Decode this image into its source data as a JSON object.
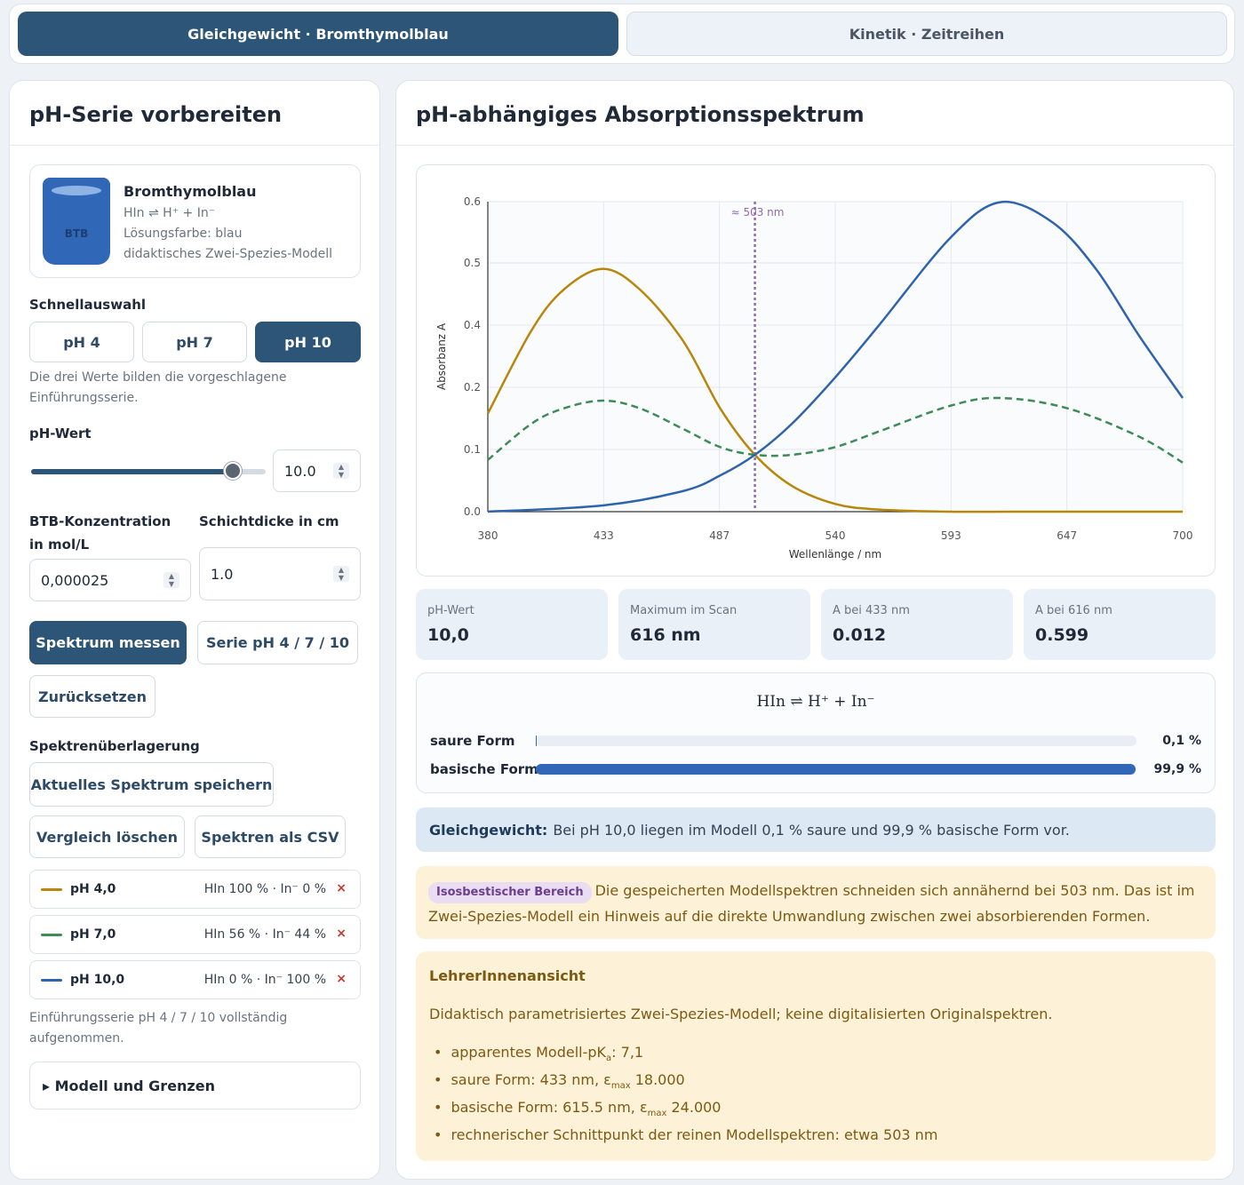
{
  "tabs": [
    {
      "label": "Gleichgewicht · Bromthymolblau",
      "active": true
    },
    {
      "label": "Kinetik · Zeitreihen",
      "active": false
    }
  ],
  "left": {
    "title": "pH-Serie vorbereiten",
    "indicator": {
      "vial_label": "BTB",
      "name": "Bromthymolblau",
      "equation": "HIn ⇌ H⁺ + In⁻",
      "color_line": "Lösungsfarbe: blau",
      "model_line": "didaktisches Zwei-Spezies-Modell",
      "vial_color": "#3068b7"
    },
    "quick": {
      "label": "Schnellauswahl",
      "buttons": [
        "pH 4",
        "pH 7",
        "pH 10"
      ],
      "selected": "pH 10",
      "hint": "Die drei Werte bilden die vorgeschlagene Einführungsserie."
    },
    "ph": {
      "label": "pH-Wert",
      "value": "10.0",
      "slider_fraction": 0.86
    },
    "concentration": {
      "label": "BTB-Konzentration in mol/L",
      "value": "0,000025"
    },
    "pathlength": {
      "label": "Schichtdicke in cm",
      "value": "1.0"
    },
    "actions": {
      "measure": "Spektrum messen",
      "series": "Serie pH 4 / 7 / 10",
      "reset": "Zurücksetzen"
    },
    "overlay": {
      "label": "Spektrenüberlagerung",
      "save": "Aktuelles Spektrum speichern",
      "clear": "Vergleich löschen",
      "csv": "Spektren als CSV",
      "items": [
        {
          "name": "pH 4,0",
          "info": "HIn 100 % · In⁻ 0 %",
          "color": "#b8860b"
        },
        {
          "name": "pH 7,0",
          "info": "HIn 56 % · In⁻ 44 %",
          "color": "#3d8b57"
        },
        {
          "name": "pH 10,0",
          "info": "HIn 0 % · In⁻ 100 %",
          "color": "#2e63ad"
        }
      ],
      "close_symbol": "×",
      "status": "Einführungsserie pH 4 / 7 / 10 vollständig aufgenommen."
    },
    "details": "▸ Modell und Grenzen"
  },
  "right": {
    "title": "pH-abhängiges Absorptionsspektrum",
    "stats": [
      {
        "label": "pH-Wert",
        "value": "10,0"
      },
      {
        "label": "Maximum im Scan",
        "value": "616 nm"
      },
      {
        "label": "A bei 433 nm",
        "value": "0.012"
      },
      {
        "label": "A bei 616 nm",
        "value": "0.599"
      }
    ],
    "equilibrium": {
      "title": "HIn ⇌ H⁺ + In⁻",
      "acid_label": "saure Form",
      "acid_pct": "0,1 %",
      "acid_fraction": 0.001,
      "base_label": "basische Form",
      "base_pct": "99,9 %",
      "base_fraction": 0.999
    },
    "info_blue": {
      "bold": "Gleichgewicht:",
      "text": "Bei pH 10,0 liegen im Modell 0,1 % saure und 99,9 % basische Form vor."
    },
    "info_isosbestic": {
      "badge": "Isosbestischer Bereich",
      "text": "Die gespeicherten Modellspektren schneiden sich annähernd bei 503 nm. Das ist im Zwei-Spezies-Modell ein Hinweis auf die direkte Umwandlung zwischen zwei absorbierenden Formen."
    },
    "teacher": {
      "title": "LehrerInnenansicht",
      "text": "Didaktisch parametrisiertes Zwei-Spezies-Modell; keine digitalisierten Originalspektren.",
      "items": [
        {
          "pre": "apparentes Modell-pK",
          "sub": "a",
          "post": ": 7,1"
        },
        {
          "pre": "saure Form: 433 nm, ε",
          "sub": "max",
          "post": " 18.000"
        },
        {
          "pre": "basische Form: 615.5 nm, ε",
          "sub": "max",
          "post": " 24.000"
        },
        {
          "pre": "rechnerischer Schnittpunkt der reinen Modellspektren: etwa 503 nm",
          "sub": "",
          "post": ""
        }
      ]
    }
  },
  "chart_data": {
    "type": "line",
    "xlabel": "Wellenlänge / nm",
    "ylabel": "Absorbanz A",
    "xlim": [
      380,
      700
    ],
    "x_ticks": [
      "380",
      "433",
      "487",
      "540",
      "593",
      "647",
      "700"
    ],
    "y_ticks": [
      "0.0",
      "0.1",
      "0.2",
      "0.4",
      "0.5",
      "0.6"
    ],
    "grid": true,
    "annotation": {
      "x": 503,
      "label": "≈ 503 nm",
      "color": "#8e6bb0"
    },
    "series": [
      {
        "name": "pH 4,0",
        "color": "#b8860b",
        "dashed": false,
        "x": [
          380,
          400,
          415,
          433,
          450,
          470,
          487,
          503,
          520,
          540,
          560,
          593,
          620,
          647,
          700
        ],
        "y": [
          0.19,
          0.35,
          0.43,
          0.47,
          0.43,
          0.33,
          0.2,
          0.11,
          0.05,
          0.015,
          0.004,
          0.0,
          0.0,
          0.0,
          0.0
        ]
      },
      {
        "name": "pH 7,0",
        "color": "#3d8b57",
        "dashed": true,
        "x": [
          380,
          400,
          415,
          433,
          450,
          470,
          487,
          503,
          520,
          540,
          560,
          593,
          616,
          647,
          680,
          700
        ],
        "y": [
          0.1,
          0.17,
          0.2,
          0.215,
          0.2,
          0.16,
          0.125,
          0.11,
          0.11,
          0.125,
          0.155,
          0.205,
          0.22,
          0.2,
          0.145,
          0.095
        ]
      },
      {
        "name": "pH 10,0",
        "color": "#2e63ad",
        "dashed": false,
        "x": [
          380,
          433,
          470,
          487,
          503,
          520,
          540,
          560,
          593,
          616,
          640,
          660,
          680,
          700
        ],
        "y": [
          0.0,
          0.012,
          0.04,
          0.07,
          0.11,
          0.17,
          0.26,
          0.36,
          0.53,
          0.599,
          0.56,
          0.47,
          0.34,
          0.22
        ]
      }
    ]
  }
}
